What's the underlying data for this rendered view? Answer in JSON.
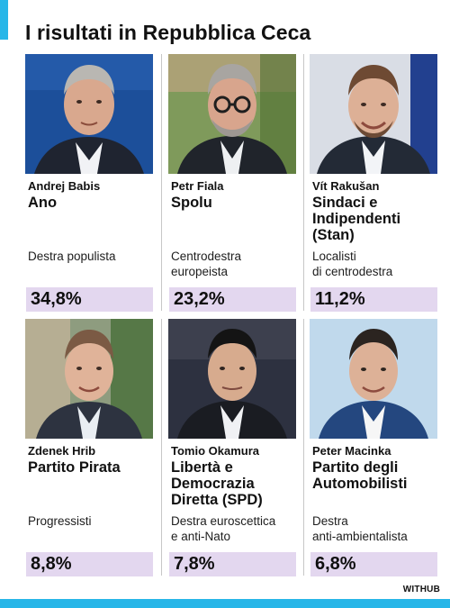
{
  "header": {
    "title": "I risultati in Repubblica Ceca"
  },
  "colors": {
    "accent": "#27b6e8",
    "percent_bar": "#e3d7ef",
    "divider": "#c7c7c7"
  },
  "candidates": [
    {
      "name": "Andrej Babis",
      "party": "Ano",
      "description": "Destra populista",
      "percent": "34,8%",
      "photo": "portrait-icon"
    },
    {
      "name": "Petr Fiala",
      "party": "Spolu",
      "description": "Centrodestra\neuropeista",
      "percent": "23,2%",
      "photo": "portrait-icon"
    },
    {
      "name": "Vít Rakušan",
      "party": "Sindaci e Indipendenti (Stan)",
      "description": "Localisti\ndi centrodestra",
      "percent": "11,2%",
      "photo": "portrait-icon"
    },
    {
      "name": "Zdenek Hrib",
      "party": "Partito Pirata",
      "description": "Progressisti",
      "percent": "8,8%",
      "photo": "portrait-icon"
    },
    {
      "name": "Tomio Okamura",
      "party": "Libertà e Democrazia Diretta (SPD)",
      "description": "Destra euroscettica\ne anti-Nato",
      "percent": "7,8%",
      "photo": "portrait-icon"
    },
    {
      "name": "Peter Macinka",
      "party": "Partito degli Automobilisti",
      "description": "Destra\nanti-ambientalista",
      "percent": "6,8%",
      "photo": "portrait-icon"
    }
  ],
  "footer": {
    "brand": "WITHUB"
  }
}
